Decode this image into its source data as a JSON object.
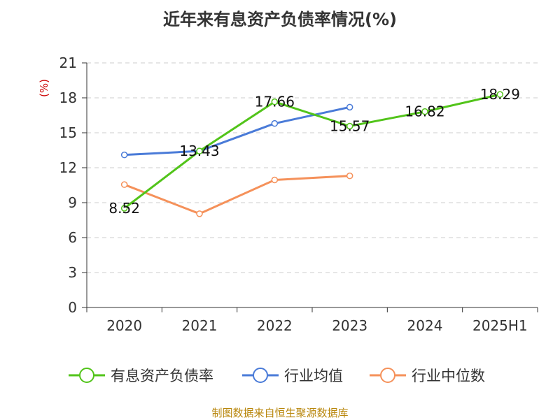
{
  "chart_data": {
    "type": "line",
    "title": "近年来有息资产负债率情况(%)",
    "ylabel": "(%)",
    "ylim": [
      0,
      21
    ],
    "yticks": [
      0,
      3,
      6,
      9,
      12,
      15,
      18,
      21
    ],
    "categories": [
      "2020",
      "2021",
      "2022",
      "2023",
      "2024",
      "2025H1"
    ],
    "grid": true,
    "legend_position": "bottom",
    "series": [
      {
        "name": "有息资产负债率",
        "color": "#52c41a",
        "values": [
          8.52,
          13.43,
          17.66,
          15.57,
          16.82,
          18.29
        ],
        "labels": [
          "8.52",
          "13.43",
          "17.66",
          "15.57",
          "16.82",
          "18.29"
        ]
      },
      {
        "name": "行业均值",
        "color": "#4a7bd8",
        "values": [
          13.1,
          13.43,
          15.8,
          17.2,
          null,
          null
        ]
      },
      {
        "name": "行业中位数",
        "color": "#f5915a",
        "values": [
          10.55,
          8.05,
          10.95,
          11.3,
          null,
          null
        ]
      }
    ]
  },
  "footer": {
    "source": "制图数据来自恒生聚源数据库"
  }
}
